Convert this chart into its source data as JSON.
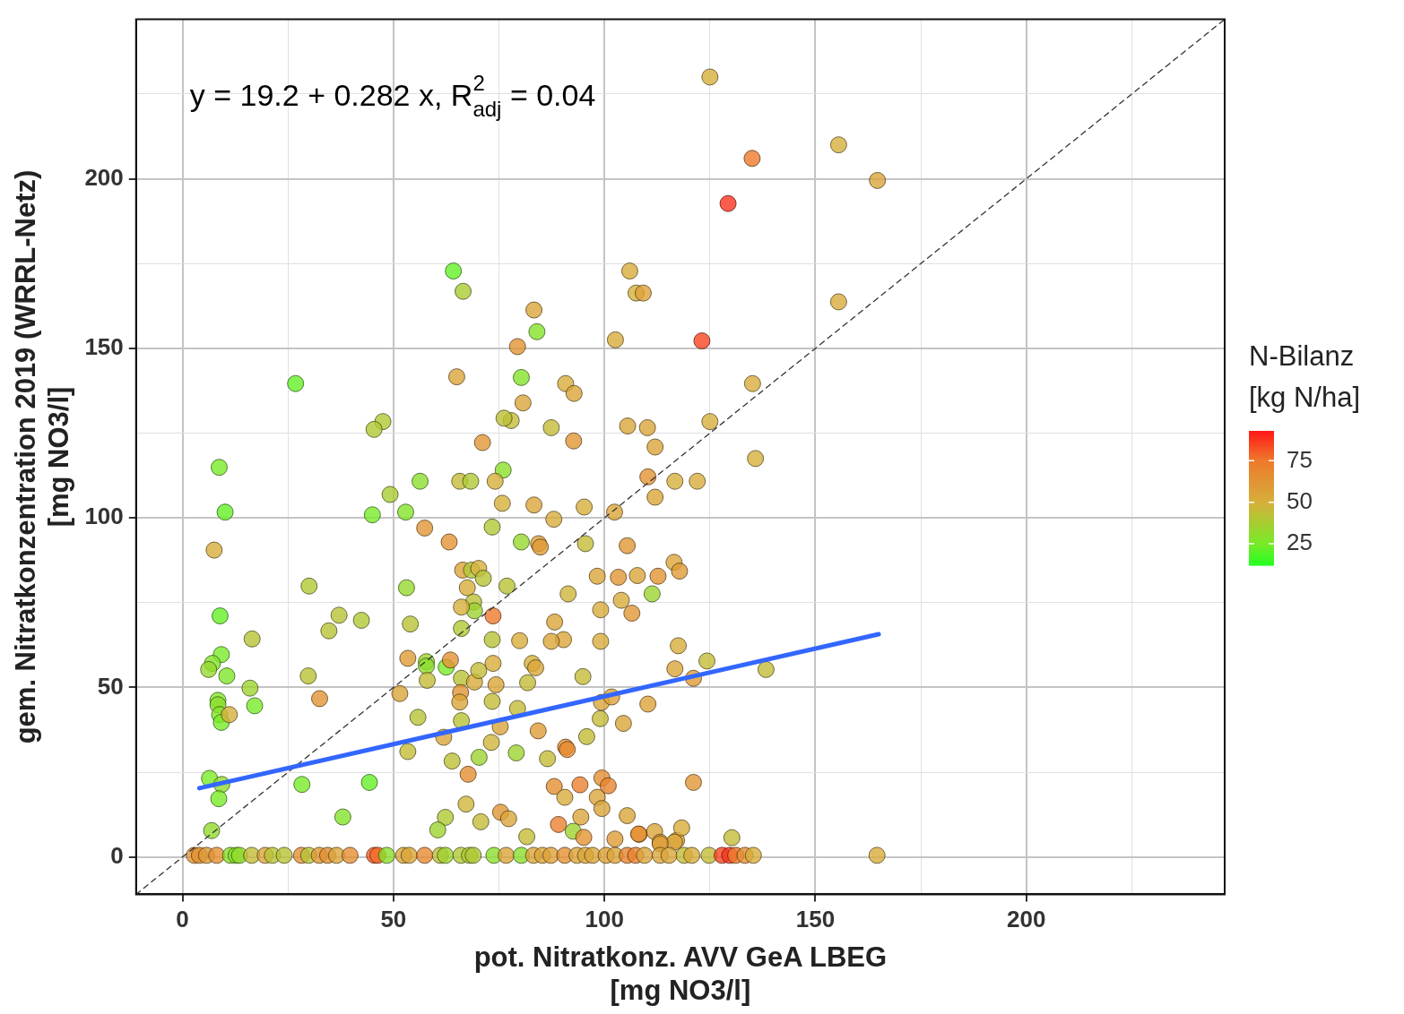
{
  "chart_data": {
    "type": "scatter",
    "xlabel": "pot. Nitratkonz. AVV GeA LBEG\n[mg NO3/l]",
    "ylabel": "gem. Nitratkonzentration 2019 (WRRL-Netz)\n[mg NO3/l]",
    "clabel": "N-Bilanz\n[kg N/ha]",
    "clim": [
      12,
      93
    ],
    "cticks": [
      25,
      50,
      75
    ],
    "xlim": [
      -11,
      247
    ],
    "ylim": [
      -11,
      247
    ],
    "xticks": [
      0,
      {
        "value": 25,
        "label": null
      },
      50,
      {
        "value": 75,
        "label": null
      },
      100,
      {
        "value": 125,
        "label": null
      },
      150,
      {
        "value": 175,
        "label": null
      },
      200,
      {
        "value": 225,
        "label": null
      }
    ],
    "yticks": [
      0,
      {
        "value": 25,
        "label": null
      },
      50,
      {
        "value": 75,
        "label": null
      },
      100,
      {
        "value": 125,
        "label": null
      },
      150,
      {
        "value": 175,
        "label": null
      },
      200,
      {
        "value": 225,
        "label": null
      }
    ],
    "grid": true,
    "legend": false,
    "marker": "circle",
    "annotations": [
      "y = 19.2 + 0.282 x, R$^{2}$$_{adj}$ = 0.04"
    ],
    "series": [
      {
        "colors": [
          "#d6b03c",
          "#d6b03c",
          "#ee7a2c",
          "#dba539",
          "#fa351f",
          "#64f027",
          "#d8ac3b",
          "#a9cc32",
          "#d6b03c",
          "#dda138",
          "#dba539",
          "#83e42a",
          "#d8ac3b",
          "#e29434",
          "#d8ac3b",
          "#f74522",
          "#64f027",
          "#83e42a",
          "#dba539",
          "#dba539",
          "#d8ac3b",
          "#dba539",
          "#d8ac3b",
          "#c3bc38",
          "#bbc136",
          "#b0c834",
          "#b0c834",
          "#c3bc38",
          "#e19634",
          "#e19634",
          "#dba539",
          "#dba539",
          "#dba539",
          "#d6b03c",
          "#d6b03c",
          "#8bdf2c",
          "#78eb28",
          "#64f027",
          "#a9cc32",
          "#83e42a",
          "#78eb28",
          "#8bdf2c",
          "#c3bc38",
          "#b0c834",
          "#d6b03c",
          "#d6b03c",
          "#dba539",
          "#d6b03c",
          "#dba539",
          "#e29434",
          "#d8ac3b",
          "#d6b03c",
          "#dba539",
          "#d8ac3b",
          "#b0c834",
          "#96d82e",
          "#dda138",
          "#df9b36",
          "#d8ac3b",
          "#e19634",
          "#e29434",
          "#c3bc38",
          "#e19634",
          "#dba539",
          "#df9b36",
          "#e29434",
          "#dba539",
          "#e19634",
          "#dba539",
          "#9ed330",
          "#ceb53a",
          "#dba539",
          "#b0c834",
          "#d6b03c",
          "#b8c336",
          "#d8ac3b",
          "#b0c834",
          "#96d82e",
          "#b8c336",
          "#bbc136",
          "#9ed330",
          "#d6b03c",
          "#b0c834",
          "#b8c336",
          "#b8c336",
          "#b8c336",
          "#b0c834",
          "#64f027",
          "#b8c336",
          "#ee7a2c",
          "#b8c336",
          "#d8ac3b",
          "#dba539",
          "#dba539",
          "#dba539",
          "#d8ac3b",
          "#e19634",
          "#d8ac3b",
          "#d8ac3b",
          "#d8ac3b",
          "#c3bc38",
          "#c3bc38",
          "#78eb28",
          "#83e42a",
          "#96d82e",
          "#80e62a",
          "#9ed330",
          "#78eb28",
          "#b8c336",
          "#e29434",
          "#83e42a",
          "#8bdf2c",
          "#83e42a",
          "#78eb28",
          "#d6b03c",
          "#df9b36",
          "#dba539",
          "#b8c336",
          "#9ed330",
          "#8bdf2c",
          "#c3bc38",
          "#78eb28",
          "#e29434",
          "#b8c336",
          "#e19634",
          "#d8ac3b",
          "#c3bc38",
          "#d8ac3b",
          "#dba539",
          "#c3bc38",
          "#d6b03c",
          "#dba539",
          "#c3bc38",
          "#dba539",
          "#c3bc38",
          "#c3bc38",
          "#b8c336",
          "#e49032",
          "#c3bc38",
          "#bbc136",
          "#9ed330",
          "#9ed330",
          "#c3bc38",
          "#e78931",
          "#c3bc38",
          "#c3bc38",
          "#dba539",
          "#dda138",
          "#df9b36",
          "#dba539",
          "#ceb53a",
          "#dba539",
          "#e49032",
          "#dba539",
          "#dda138",
          "#e49032",
          "#d8ac3b",
          "#eb812e",
          "#e49032",
          "#e9852f",
          "#dba539",
          "#dba539",
          "#dba539",
          "#ceb53a",
          "#b0c834",
          "#9ed330",
          "#c3bc38",
          "#e19634",
          "#dba539",
          "#c3bc38",
          "#eb812e",
          "#dba539",
          "#9ed330",
          "#e29434",
          "#df9b36",
          "#e58e32",
          "#dba539",
          "#dba539",
          "#dba539",
          "#92da2e",
          "#83e42a",
          "#78eb28",
          "#64f027",
          "#78eb28",
          "#92da2e",
          "#78eb28",
          "#e19634",
          "#e49032",
          "#d8ac3b",
          "#dba539",
          "#df9b36",
          "#c3bc38",
          "#d8ac3b",
          "#dba539",
          "#df9b36",
          "#e19634",
          "#e49032",
          "#df9b36",
          "#e49032",
          "#8bdf2c",
          "#83e42a",
          "#92da2e",
          "#c3bc38",
          "#dba539",
          "#b8c336",
          "#b8c336",
          "#e49032",
          "#b8c336",
          "#e19634",
          "#e49032",
          "#dba539",
          "#e49032",
          "#f36027",
          "#f16b29",
          "#8bdf2c",
          "#dba539",
          "#dba539",
          "#e78931",
          "#c3bc38",
          "#9ed330",
          "#b0c834",
          "#a9cc32",
          "#b0c834",
          "#8bdf2c",
          "#dba539",
          "#8bdf2c",
          "#dba539",
          "#dba539",
          "#dda138",
          "#e49032",
          "#dba539",
          "#dba539",
          "#dba539",
          "#dda138",
          "#dba539",
          "#e9852f",
          "#eb812e",
          "#dba539",
          "#dba539",
          "#dba539",
          "#c3bc38",
          "#d8ac3b",
          "#c3bc38",
          "#f74522",
          "#fa351f",
          "#ee7a2c",
          "#e49032",
          "#d8ac3b"
        ],
        "x": [
          125,
          155.5,
          135,
          164.7,
          129.3,
          64.2,
          106,
          66.5,
          107.5,
          109.2,
          83.3,
          84,
          155.5,
          79.4,
          102.6,
          123.1,
          26.8,
          80.3,
          65,
          80.7,
          90.8,
          92.8,
          135.1,
          77.9,
          76.2,
          47.5,
          45.4,
          87.4,
          71.1,
          92.7,
          105.5,
          110.2,
          112,
          125,
          135.8,
          76,
          8.7,
          10.1,
          49.2,
          52.9,
          45,
          56.3,
          65.7,
          68.3,
          74.1,
          75.8,
          83.3,
          95.2,
          102.4,
          110.3,
          122,
          116.7,
          112,
          7.5,
          73.4,
          80.3,
          84.4,
          84.8,
          88,
          57.4,
          63.2,
          95.5,
          105.4,
          116.5,
          117.8,
          112.7,
          107.8,
          103.3,
          98.3,
          111.3,
          91.4,
          66.4,
          68.5,
          70.2,
          71.3,
          67.5,
          30,
          53.1,
          76.9,
          69,
          69.2,
          66.1,
          66.1,
          54,
          34.7,
          37.1,
          42.4,
          8.9,
          16.5,
          73.6,
          73.4,
          79.9,
          88.2,
          90.3,
          87.4,
          99.1,
          106.5,
          104,
          99.1,
          117.5,
          124.3,
          138.3,
          9.2,
          7.1,
          6.2,
          10.5,
          16,
          17.1,
          29.8,
          32.5,
          8.4,
          8.4,
          8.8,
          9.2,
          11.1,
          53.4,
          51.5,
          55.8,
          57.8,
          57.8,
          58,
          62.5,
          63.5,
          66.1,
          65.9,
          69.2,
          70.2,
          73.6,
          74.3,
          81.8,
          82.9,
          83.7,
          94.9,
          65.7,
          73.4,
          79.4,
          66.1,
          90.8,
          53.4,
          63.9,
          70.3,
          79.1,
          86.5,
          91.2,
          95.8,
          99,
          104.5,
          110.3,
          84.3,
          75.3,
          73.2,
          61.9,
          67.7,
          99.3,
          101.7,
          88.1,
          90.6,
          94.2,
          99.4,
          100.9,
          98.3,
          99.4,
          105.4,
          67.2,
          62.3,
          60.5,
          70.7,
          75.4,
          77.3,
          81.6,
          89.1,
          94.4,
          92.6,
          95.1,
          102.5,
          108.2,
          111.9,
          113.2,
          117.1,
          6.9,
          38,
          28.3,
          44.3,
          6.4,
          9.3,
          8.6,
          121.1,
          108.1,
          118.3,
          116.6,
          113.2,
          130.2,
          164.6,
          116.7,
          121.1,
          2.8,
          4,
          5.7,
          8.1,
          11.4,
          12.7,
          13.5,
          16.4,
          19.6,
          21.3,
          24.1,
          28.2,
          29.9,
          32.4,
          34.4,
          36.5,
          39.7,
          45.5,
          46.3,
          48.4,
          52.4,
          53.7,
          57.4,
          61.1,
          62.3,
          66,
          68,
          68.9,
          73.8,
          76.7,
          80.3,
          83.2,
          85.3,
          87.3,
          90.6,
          93.5,
          95.5,
          97.2,
          100.4,
          102.5,
          105.4,
          107.4,
          109.5,
          113.2,
          115.3,
          118.9,
          120.7,
          124.8,
          127.9,
          129.7,
          131.1,
          133.3,
          135.3
        ],
        "values": [
          230,
          210,
          206,
          199.5,
          192.7,
          172.8,
          172.8,
          166.8,
          166.3,
          166.3,
          161.3,
          154.9,
          163.7,
          150.5,
          152.5,
          152.2,
          139.6,
          141.4,
          141.6,
          133.9,
          139.6,
          136.7,
          139.6,
          128.7,
          129.4,
          128.4,
          126.1,
          126.6,
          122.2,
          122.7,
          127.1,
          126.6,
          120.9,
          128.4,
          117.5,
          114.1,
          114.9,
          101.7,
          106.9,
          101.7,
          100.9,
          110.8,
          110.8,
          110.8,
          110.8,
          104.3,
          103.8,
          103.2,
          101.7,
          112.1,
          110.8,
          110.8,
          106.1,
          90.5,
          97.3,
          92.9,
          92.4,
          91.4,
          99.6,
          97,
          92.9,
          92.4,
          91.8,
          86.9,
          84.3,
          82.8,
          83,
          82.5,
          82.8,
          77.6,
          77.6,
          84.6,
          84.6,
          85.1,
          82.2,
          79.4,
          79.9,
          79.4,
          79.9,
          75.2,
          72.6,
          73.7,
          67.4,
          68.7,
          66.7,
          71.3,
          69.8,
          71.1,
          64.3,
          71.1,
          64.1,
          63.8,
          69.3,
          64.1,
          63.6,
          63.6,
          71.9,
          75.7,
          72.9,
          62.3,
          57.8,
          55.3,
          59.7,
          57.1,
          55.3,
          53.4,
          49.8,
          44.6,
          53.4,
          46.7,
          46.2,
          44.9,
          42,
          39.7,
          42,
          58.6,
          48.2,
          41.2,
          57.6,
          56.3,
          52.1,
          56,
          58.1,
          52.7,
          48.5,
          51.6,
          55,
          57.1,
          50.8,
          51.4,
          57.1,
          55.8,
          53.2,
          45.7,
          45.9,
          43.8,
          40.2,
          32.4,
          31.1,
          28.3,
          29.4,
          30.7,
          29,
          31.7,
          35.5,
          40.8,
          39.4,
          45.1,
          37.2,
          38.4,
          33.8,
          35.3,
          24.4,
          45.6,
          47.2,
          20.8,
          17.6,
          21.3,
          23.3,
          21,
          17.6,
          14.3,
          12.2,
          15.6,
          11.7,
          8,
          10.4,
          13.2,
          11.3,
          6,
          9.6,
          11.8,
          7.6,
          5.8,
          5.3,
          6.7,
          7.5,
          4.4,
          4.9,
          7.8,
          11.8,
          21.4,
          22,
          23.2,
          21.4,
          17.2,
          22,
          6.8,
          8.6,
          4.4,
          3.9,
          5.7,
          0.5,
          55.5,
          52.7,
          0.5,
          0.5,
          0.5,
          0.5,
          0.5,
          0.5,
          0.5,
          0.5,
          0.5,
          0.5,
          0.5,
          0.5,
          0.5,
          0.5,
          0.5,
          0.5,
          0.5,
          0.5,
          0.5,
          0.5,
          0.5,
          0.5,
          0.5,
          0.5,
          0.5,
          0.5,
          0.5,
          0.5,
          0.5,
          0.5,
          0.5,
          0.5,
          0.5,
          0.5,
          0.5,
          0.5,
          0.5,
          0.5,
          0.5,
          0.5,
          0.5,
          0.5,
          0.5,
          0.5,
          0.5,
          0.5,
          0.5,
          0.5,
          0.5,
          0.5,
          0.5,
          0.5,
          0.5
        ],
        "cvalues": [
          50,
          50,
          75,
          55,
          88,
          22,
          52,
          38,
          50,
          57,
          55,
          28,
          52,
          63,
          52,
          85,
          22,
          28,
          55,
          55,
          52,
          55,
          52,
          45,
          43,
          40,
          40,
          45,
          62,
          62,
          55,
          55,
          55,
          50,
          50,
          30,
          25,
          22,
          38,
          28,
          25,
          30,
          45,
          40,
          50,
          50,
          55,
          50,
          55,
          63,
          52,
          50,
          55,
          52,
          40,
          33,
          57,
          60,
          52,
          62,
          63,
          45,
          62,
          55,
          60,
          63,
          55,
          62,
          55,
          35,
          48,
          55,
          40,
          50,
          42,
          52,
          40,
          33,
          42,
          43,
          35,
          50,
          40,
          42,
          42,
          42,
          40,
          22,
          42,
          75,
          42,
          52,
          55,
          55,
          55,
          52,
          62,
          52,
          52,
          52,
          45,
          45,
          25,
          28,
          33,
          27,
          35,
          25,
          42,
          63,
          28,
          30,
          28,
          25,
          50,
          60,
          55,
          42,
          35,
          30,
          45,
          25,
          63,
          42,
          62,
          52,
          45,
          52,
          55,
          45,
          50,
          55,
          45,
          55,
          45,
          45,
          42,
          65,
          45,
          43,
          35,
          35,
          45,
          68,
          45,
          45,
          55,
          57,
          60,
          55,
          48,
          55,
          65,
          55,
          57,
          65,
          52,
          72,
          65,
          70,
          55,
          55,
          55,
          48,
          40,
          35,
          45,
          62,
          55,
          45,
          72,
          55,
          35,
          63,
          60,
          66,
          55,
          55,
          55,
          32,
          28,
          25,
          22,
          25,
          32,
          25,
          62,
          65,
          52,
          55,
          60,
          45,
          52,
          55,
          60,
          62,
          65,
          60,
          65,
          30,
          28,
          32,
          45,
          55,
          42,
          42,
          65,
          42,
          62,
          65,
          55,
          65,
          80,
          78,
          30,
          55,
          55,
          68,
          45,
          35,
          40,
          38,
          40,
          30,
          55,
          30,
          55,
          55,
          57,
          65,
          55,
          55,
          55,
          57,
          55,
          70,
          72,
          55,
          55,
          55,
          45,
          52,
          45,
          85,
          88,
          75,
          65,
          52
        ]
      },
      {
        "type": "line",
        "marker": "none",
        "color": "#3366ff",
        "x": [
          4,
          165
        ],
        "values": [
          20.3,
          65.7
        ]
      },
      {
        "type": "line",
        "marker": "none",
        "line_style": "dashed",
        "color": "#333333",
        "x": [
          -11,
          247
        ],
        "values": [
          -11,
          247
        ]
      }
    ]
  }
}
